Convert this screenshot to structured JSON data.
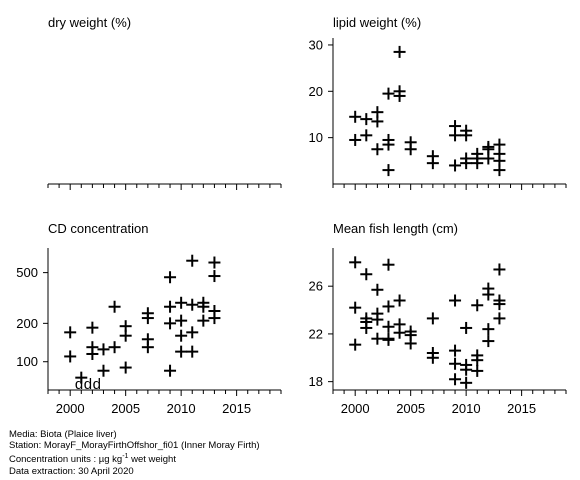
{
  "chart_data": [
    {
      "type": "scatter",
      "title": "dry weight (%)",
      "x": [],
      "y": [],
      "xlim": [
        1998,
        2019
      ],
      "xticks": [
        2000,
        2005,
        2010,
        2015
      ],
      "xtick_labels": [],
      "ylim": null,
      "yticks": [],
      "ytick_labels": []
    },
    {
      "type": "scatter",
      "title": "lipid weight (%)",
      "x": [
        2000,
        2000,
        2001,
        2001,
        2002,
        2002,
        2002,
        2003,
        2003,
        2003,
        2003,
        2004,
        2004,
        2004,
        2005,
        2005,
        2007,
        2007,
        2009,
        2009,
        2009,
        2010,
        2010,
        2010,
        2010,
        2011,
        2011,
        2011,
        2012,
        2012,
        2012,
        2013,
        2013,
        2013,
        2013
      ],
      "y": [
        14.5,
        9.5,
        14,
        10.5,
        15.5,
        13.5,
        7.5,
        19.5,
        9.5,
        8.5,
        3,
        28.5,
        20,
        19,
        9,
        7.5,
        6,
        4.5,
        12.5,
        10.5,
        4,
        11.5,
        10.5,
        5.5,
        4.5,
        6.5,
        5.5,
        4.5,
        8,
        7.5,
        5.5,
        8.5,
        6.5,
        5,
        3
      ],
      "xlim": [
        1998,
        2019
      ],
      "xticks": [
        2000,
        2005,
        2010,
        2015
      ],
      "xtick_labels": [],
      "ylim": [
        0,
        31.5
      ],
      "yticks": [
        10,
        20,
        30
      ],
      "ytick_labels": [
        "10",
        "20",
        "30"
      ]
    },
    {
      "type": "scatter",
      "title": "CD concentration",
      "log_y": true,
      "x": [
        2000,
        2000,
        2001,
        2002,
        2002,
        2002,
        2003,
        2003,
        2004,
        2004,
        2005,
        2005,
        2005,
        2007,
        2007,
        2007,
        2007,
        2009,
        2009,
        2009,
        2009,
        2010,
        2010,
        2010,
        2010,
        2011,
        2011,
        2011,
        2011,
        2012,
        2012,
        2012,
        2013,
        2013,
        2013,
        2013
      ],
      "y": [
        170,
        110,
        75,
        185,
        130,
        115,
        125,
        85,
        270,
        130,
        190,
        160,
        90,
        240,
        220,
        150,
        130,
        460,
        270,
        200,
        85,
        290,
        210,
        160,
        120,
        620,
        280,
        170,
        120,
        290,
        270,
        210,
        600,
        470,
        250,
        220
      ],
      "markers": [
        {
          "label": "d",
          "x": 2000.8
        },
        {
          "label": "d",
          "x": 2001.6
        },
        {
          "label": "d",
          "x": 2002.4
        }
      ],
      "xlim": [
        1998,
        2019
      ],
      "xticks": [
        2000,
        2005,
        2010,
        2015
      ],
      "xtick_labels": [
        "2000",
        "2005",
        "2010",
        "2015"
      ],
      "ylim": [
        60,
        780
      ],
      "yticks": [
        100,
        200,
        500
      ],
      "ytick_labels": [
        "100",
        "200",
        "500"
      ]
    },
    {
      "type": "scatter",
      "title": "Mean fish length (cm)",
      "x": [
        2000,
        2000,
        2000,
        2001,
        2001,
        2001,
        2001,
        2002,
        2002,
        2002,
        2002,
        2003,
        2003,
        2003,
        2003,
        2003,
        2004,
        2004,
        2004,
        2005,
        2005,
        2005,
        2007,
        2007,
        2007,
        2009,
        2009,
        2009,
        2009,
        2010,
        2010,
        2010,
        2010,
        2011,
        2011,
        2011,
        2011,
        2012,
        2012,
        2012,
        2012,
        2013,
        2013,
        2013,
        2013
      ],
      "y": [
        28,
        24.2,
        21.1,
        27,
        23.3,
        23,
        22.5,
        25.7,
        23.7,
        23.2,
        21.6,
        27.8,
        24.3,
        22.6,
        21.6,
        21.5,
        24.8,
        22.8,
        22.1,
        22.2,
        21.9,
        21.2,
        23.3,
        20.4,
        20,
        24.8,
        20.6,
        19.5,
        18.2,
        22.5,
        19.4,
        19,
        17.9,
        24.4,
        20.2,
        19.8,
        18.9,
        25.8,
        25.3,
        22.4,
        21.4,
        27.4,
        24.8,
        24.5,
        23.3
      ],
      "xlim": [
        1998,
        2019
      ],
      "xticks": [
        2000,
        2005,
        2010,
        2015
      ],
      "xtick_labels": [
        "2000",
        "2005",
        "2010",
        "2015"
      ],
      "ylim": [
        17.3,
        29.2
      ],
      "yticks": [
        18,
        22,
        26
      ],
      "ytick_labels": [
        "18",
        "22",
        "26"
      ]
    }
  ],
  "footer": {
    "media": "Media: Biota (Plaice liver)",
    "station": "Station: MorayF_MorayFirthOffshor_fi01 (Inner Moray Firth)",
    "units_prefix": "Concentration units : µg kg",
    "units_exp": "-1",
    "units_suffix": " wet weight",
    "extraction": "Data extraction: 30 April 2020"
  }
}
